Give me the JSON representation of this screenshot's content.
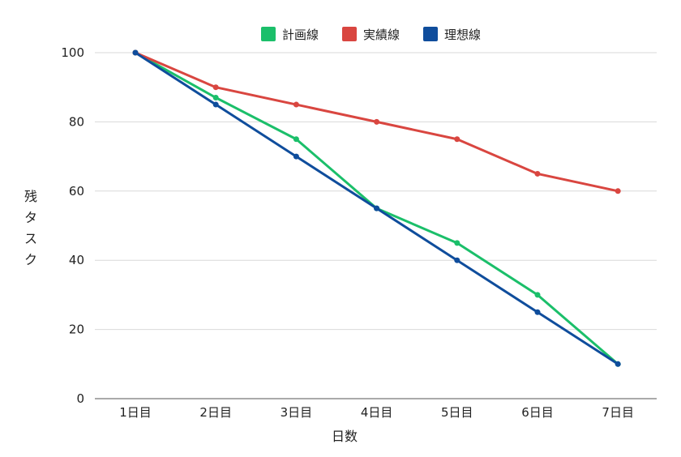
{
  "chart_data": {
    "type": "line",
    "title": "",
    "xlabel": "日数",
    "ylabel": "残タスク",
    "categories": [
      "1日目",
      "2日目",
      "3日目",
      "4日目",
      "5日目",
      "6日目",
      "7日目"
    ],
    "ylim": [
      0,
      100
    ],
    "yticks": [
      0,
      20,
      40,
      60,
      80,
      100
    ],
    "grid": true,
    "legend_position": "top",
    "series": [
      {
        "name": "計画線",
        "color": "#1bbf6a",
        "values": [
          100,
          87,
          75,
          55,
          45,
          30,
          10
        ]
      },
      {
        "name": "実績線",
        "color": "#d94640",
        "values": [
          100,
          90,
          85,
          80,
          75,
          65,
          60
        ]
      },
      {
        "name": "理想線",
        "color": "#0f4d9c",
        "values": [
          100,
          85,
          70,
          55,
          40,
          25,
          10
        ]
      }
    ]
  }
}
